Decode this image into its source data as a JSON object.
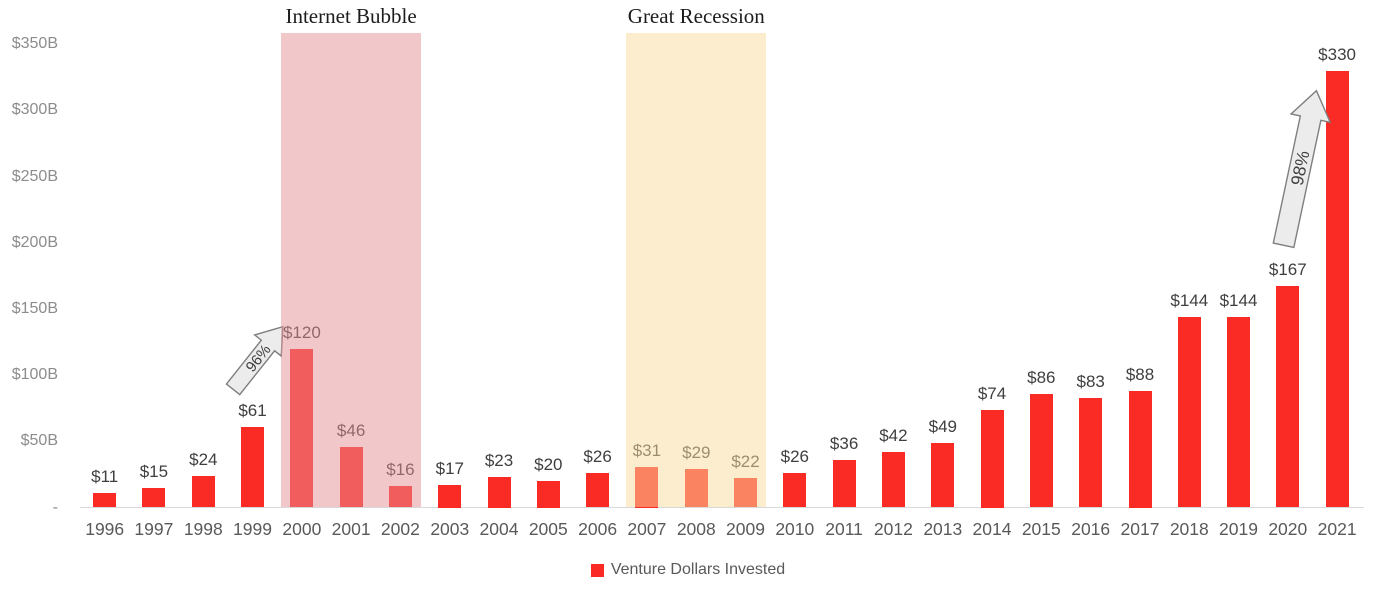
{
  "chart_data": {
    "type": "bar",
    "title": "",
    "categories": [
      "1996",
      "1997",
      "1998",
      "1999",
      "2000",
      "2001",
      "2002",
      "2003",
      "2004",
      "2005",
      "2006",
      "2007",
      "2008",
      "2009",
      "2010",
      "2011",
      "2012",
      "2013",
      "2014",
      "2015",
      "2016",
      "2017",
      "2018",
      "2019",
      "2020",
      "2021"
    ],
    "series": [
      {
        "name": "Venture Dollars Invested",
        "values": [
          11,
          15,
          24,
          61,
          120,
          46,
          16,
          17,
          23,
          20,
          26,
          31,
          29,
          22,
          26,
          36,
          42,
          49,
          74,
          86,
          83,
          88,
          144,
          144,
          167,
          330
        ]
      }
    ],
    "value_labels": [
      "$11",
      "$15",
      "$24",
      "$61",
      "$120",
      "$46",
      "$16",
      "$17",
      "$23",
      "$20",
      "$26",
      "$31",
      "$29",
      "$22",
      "$26",
      "$36",
      "$42",
      "$49",
      "$74",
      "$86",
      "$83",
      "$88",
      "$144",
      "$144",
      "$167",
      "$330"
    ],
    "ylabel": "",
    "xlabel": "",
    "ylim": [
      0,
      358
    ],
    "grid": false,
    "yticks": [
      {
        "value": 0,
        "label": "-"
      },
      {
        "value": 50,
        "label": "$50B"
      },
      {
        "value": 100,
        "label": "$100B"
      },
      {
        "value": 150,
        "label": "$150B"
      },
      {
        "value": 200,
        "label": "$200B"
      },
      {
        "value": 250,
        "label": "$250B"
      },
      {
        "value": 300,
        "label": "$300B"
      },
      {
        "value": 350,
        "label": "$350B"
      }
    ],
    "bar_color": "#FA2B25",
    "legend": {
      "label": "Venture Dollars Invested",
      "color": "#FA2B25",
      "position": "bottom"
    },
    "annotations": {
      "bands": [
        {
          "label": "Internet Bubble",
          "start": "2000",
          "end": "2002",
          "color": "rgba(229,143,147,0.5)"
        },
        {
          "label": "Great Recession",
          "start": "2007",
          "end": "2009",
          "color": "rgba(250,219,157,0.5)"
        }
      ],
      "arrows": [
        {
          "label": "96%",
          "from": "1999",
          "to": "2000"
        },
        {
          "label": "98%",
          "from": "2020",
          "to": "2021"
        }
      ]
    }
  }
}
